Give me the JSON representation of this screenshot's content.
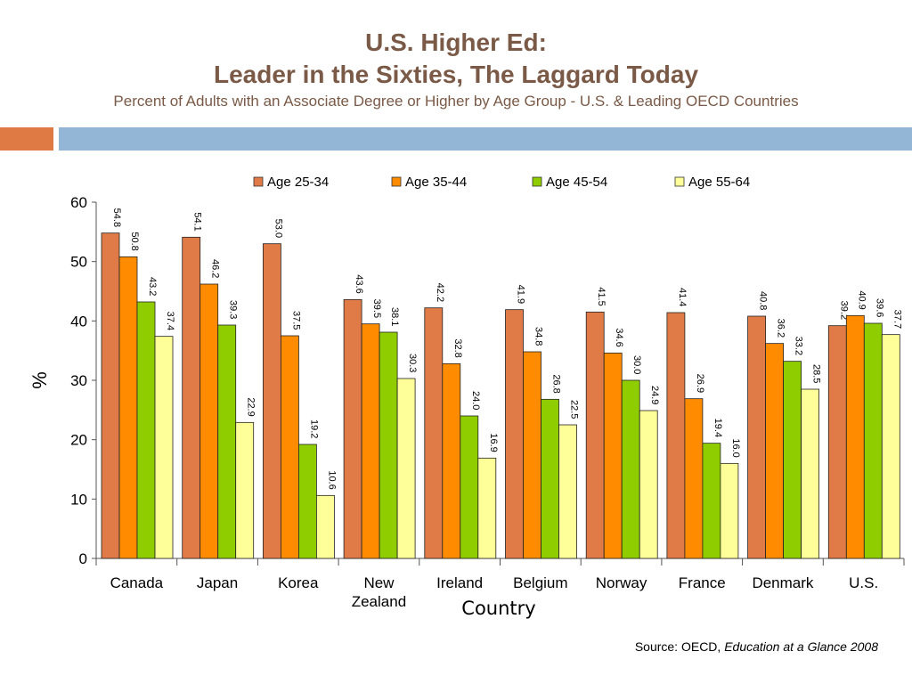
{
  "slide": {
    "title_line1": "U.S. Higher Ed:",
    "title_line2": "Leader in the Sixties, The Laggard Today",
    "subtitle": "Percent of Adults with an Associate Degree or Higher by Age Group - U.S. & Leading OECD Countries",
    "source_prefix": "Source: OECD, ",
    "source_title": "Education at a Glance 2008"
  },
  "colors": {
    "title": "#7a5a47",
    "accent": "#e07a45",
    "band": "#93b6d6"
  },
  "chart_data": {
    "type": "bar",
    "title": "",
    "xlabel": "Country",
    "ylabel": "%",
    "ylim": [
      0,
      60
    ],
    "yticks": [
      0,
      10,
      20,
      30,
      40,
      50,
      60
    ],
    "grid": false,
    "legend_position": "top",
    "categories": [
      [
        "Canada"
      ],
      [
        "Japan"
      ],
      [
        "Korea"
      ],
      [
        "New",
        "Zealand"
      ],
      [
        "Ireland"
      ],
      [
        "Belgium"
      ],
      [
        "Norway"
      ],
      [
        "France"
      ],
      [
        "Denmark"
      ],
      [
        "U.S."
      ]
    ],
    "series": [
      {
        "name": "Age 25-34",
        "color": "#e07b48",
        "values": [
          54.8,
          54.1,
          53.0,
          43.6,
          42.2,
          41.9,
          41.5,
          41.4,
          40.8,
          39.2
        ]
      },
      {
        "name": "Age 35-44",
        "color": "#ff8c00",
        "values": [
          50.8,
          46.2,
          37.5,
          39.5,
          32.8,
          34.8,
          34.6,
          26.9,
          36.2,
          40.9
        ]
      },
      {
        "name": "Age 45-54",
        "color": "#8fcc00",
        "values": [
          43.2,
          39.3,
          19.2,
          38.1,
          24.0,
          26.8,
          30.0,
          19.4,
          33.2,
          39.6
        ]
      },
      {
        "name": "Age 55-64",
        "color": "#ffff99",
        "values": [
          37.4,
          22.9,
          10.6,
          30.3,
          16.9,
          22.5,
          24.9,
          16.0,
          28.5,
          37.7
        ]
      }
    ]
  }
}
